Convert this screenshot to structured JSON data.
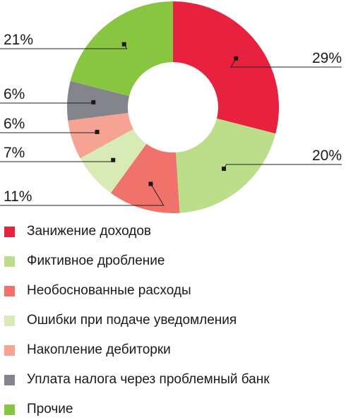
{
  "chart_data": {
    "type": "pie",
    "categories": [
      "Занижение доходов",
      "Фиктивное дробление",
      "Необоснованные расходы",
      "Ошибки при подаче уведомления",
      "Накопление дебиторки",
      "Уплата налога через проблемный банк",
      "Прочие"
    ],
    "values": [
      29,
      20,
      11,
      7,
      6,
      6,
      21
    ],
    "labels": [
      "29%",
      "20%",
      "11%",
      "7%",
      "6%",
      "6%",
      "21%"
    ],
    "colors": [
      "#e8213f",
      "#bcdd8a",
      "#f0736b",
      "#d8ebb7",
      "#f6a394",
      "#84858c",
      "#88c540"
    ],
    "legend_position": "bottom",
    "title": ""
  }
}
